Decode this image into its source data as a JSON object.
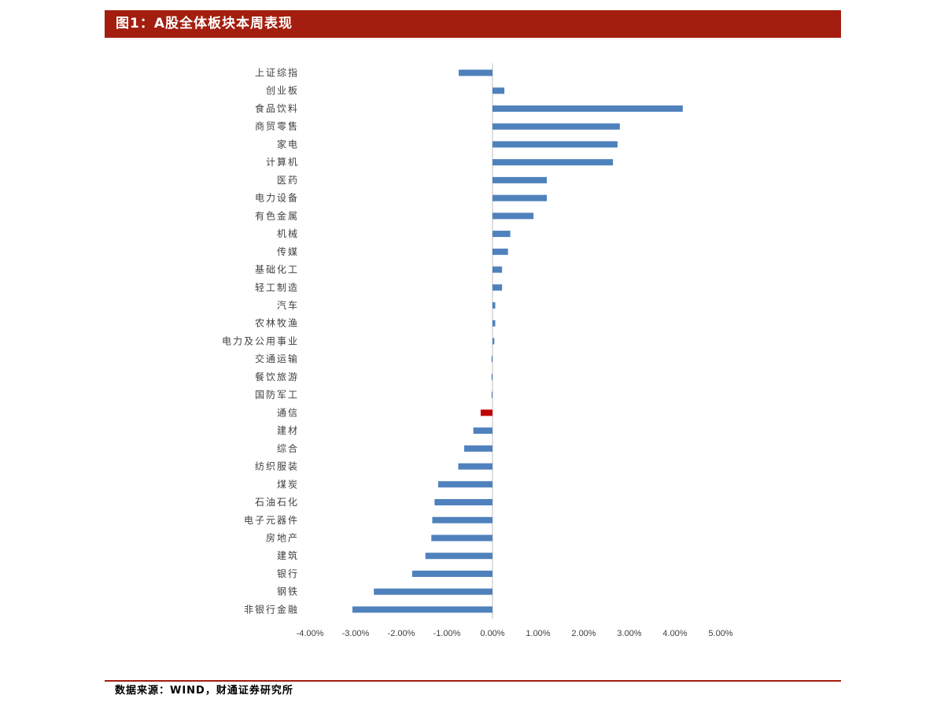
{
  "header": {
    "title": "图1：A股全体板块本周表现"
  },
  "footer": {
    "source": "数据来源：WIND，财通证券研究所"
  },
  "colors": {
    "header_bg": "#a31e0e",
    "bar": "#4f81bd",
    "highlight": "#c00000",
    "axis": "#bfbfbf"
  },
  "chart_data": {
    "type": "bar",
    "orientation": "horizontal",
    "title": "",
    "xlabel": "",
    "ylabel": "",
    "xlim": [
      -4,
      5
    ],
    "x_tick_labels": [
      "-4.00%",
      "-3.00%",
      "-2.00%",
      "-1.00%",
      "0.00%",
      "1.00%",
      "2.00%",
      "3.00%",
      "4.00%",
      "5.00%"
    ],
    "grid": false,
    "legend": "none",
    "highlight_category": "通信",
    "categories": [
      "上证综指",
      "创业板",
      "食品饮料",
      "商贸零售",
      "家电",
      "计算机",
      "医药",
      "电力设备",
      "有色金属",
      "机械",
      "传媒",
      "基础化工",
      "轻工制造",
      "汽车",
      "农林牧渔",
      "电力及公用事业",
      "交通运输",
      "餐饮旅游",
      "国防军工",
      "通信",
      "建材",
      "综合",
      "纺织服装",
      "煤炭",
      "石油石化",
      "电子元器件",
      "房地产",
      "建筑",
      "银行",
      "钢铁",
      "非银行金融"
    ],
    "values": [
      -0.74,
      0.26,
      4.17,
      2.79,
      2.74,
      2.64,
      1.19,
      1.19,
      0.9,
      0.39,
      0.34,
      0.21,
      0.21,
      0.06,
      0.06,
      0.04,
      -0.02,
      -0.02,
      -0.02,
      -0.26,
      -0.42,
      -0.62,
      -0.75,
      -1.19,
      -1.27,
      -1.32,
      -1.34,
      -1.47,
      -1.76,
      -2.6,
      -3.07
    ]
  }
}
